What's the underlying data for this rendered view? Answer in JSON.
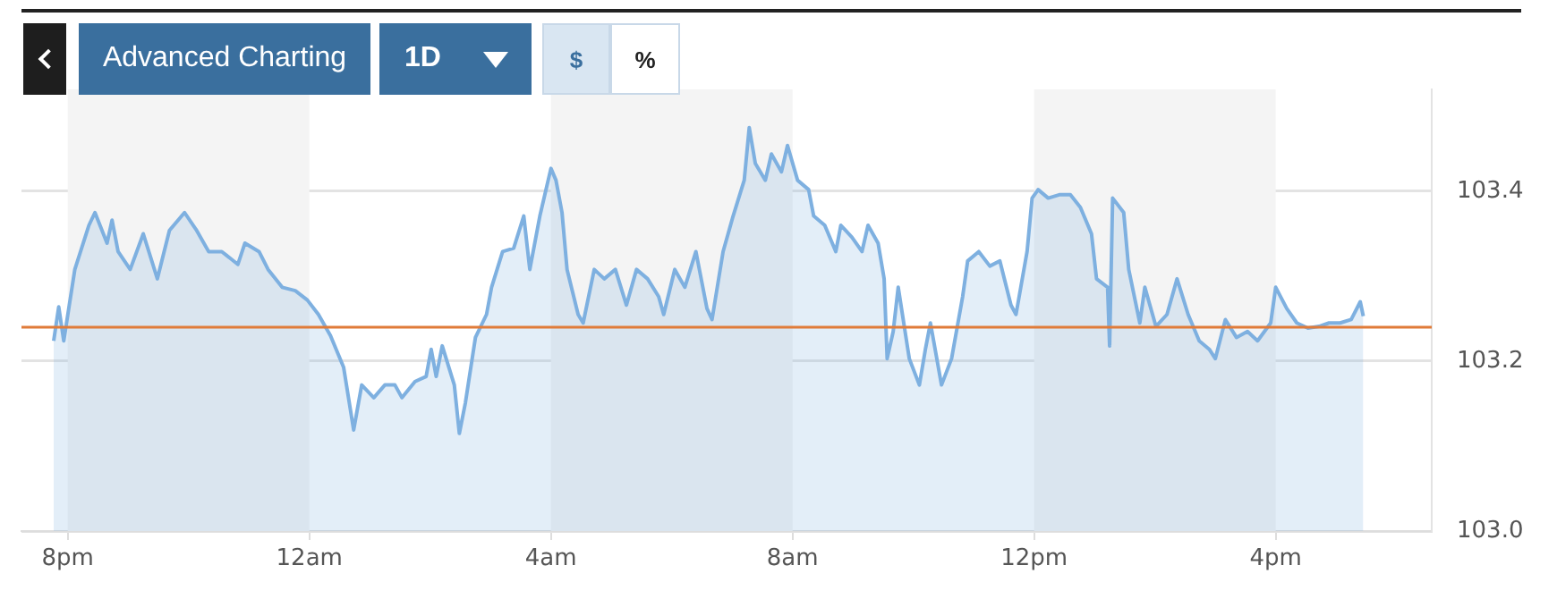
{
  "chart_data": {
    "type": "area",
    "annotations": [
      "Advanced Charting",
      "1D",
      "$",
      "%"
    ],
    "x": [
      "--01-01T19:46",
      "--01-01T19:51",
      "--01-01T19:56",
      "--01-01T20:07",
      "--01-01T20:21",
      "--01-01T20:27",
      "--01-01T20:39",
      "--01-01T20:44",
      "--01-01T20:50",
      "--01-01T21:02",
      "--01-01T21:15",
      "--01-01T21:29",
      "--01-01T21:41",
      "--01-01T21:56",
      "--01-01T22:08",
      "--01-01T22:20",
      "--01-01T22:33",
      "--01-01T22:49",
      "--01-01T22:56",
      "--01-01T23:10",
      "--01-01T23:19",
      "--01-01T23:33",
      "--01-01T23:46",
      "--01-01T23:58",
      "--01-02T00:09",
      "--01-02T00:21",
      "--01-02T00:34",
      "--01-02T00:44",
      "--01-02T00:52",
      "--01-02T01:04",
      "--01-02T01:15",
      "--01-02T01:25",
      "--01-02T01:32",
      "--01-02T01:45",
      "--01-02T01:56",
      "--01-02T02:01",
      "--01-02T02:06",
      "--01-02T02:12",
      "--01-02T02:24",
      "--01-02T02:29",
      "--01-02T02:35",
      "--01-02T02:45",
      "--01-02T02:56",
      "--01-02T03:01",
      "--01-02T03:12",
      "--01-02T03:23",
      "--01-02T03:33",
      "--01-02T03:39",
      "--01-02T03:49",
      "--01-02T04:00",
      "--01-02T04:05",
      "--01-02T04:11",
      "--01-02T04:16",
      "--01-02T04:27",
      "--01-02T04:32",
      "--01-02T04:43",
      "--01-02T04:53",
      "--01-02T05:04",
      "--01-02T05:15",
      "--01-02T05:25",
      "--01-02T05:36",
      "--01-02T05:47",
      "--01-02T05:52",
      "--01-02T06:03",
      "--01-02T06:13",
      "--01-02T06:24",
      "--01-02T06:35",
      "--01-02T06:40",
      "--01-02T06:51",
      "--01-02T07:01",
      "--01-02T07:12",
      "--01-02T07:17",
      "--01-02T07:23",
      "--01-02T07:33",
      "--01-02T07:39",
      "--01-02T07:49",
      "--01-02T07:55",
      "--01-02T08:05",
      "--01-02T08:16",
      "--01-02T08:21",
      "--01-02T08:32",
      "--01-02T08:43",
      "--01-02T08:48",
      "--01-02T08:59",
      "--01-02T09:09",
      "--01-02T09:15",
      "--01-02T09:25",
      "--01-02T09:31",
      "--01-02T09:34",
      "--01-02T09:40",
      "--01-02T09:45",
      "--01-02T09:56",
      "--01-02T10:06",
      "--01-02T10:12",
      "--01-02T10:17",
      "--01-02T10:28",
      "--01-02T10:38",
      "--01-02T10:49",
      "--01-02T10:54",
      "--01-02T11:05",
      "--01-02T11:16",
      "--01-02T11:26",
      "--01-02T11:37",
      "--01-02T11:42",
      "--01-02T11:53",
      "--01-02T11:58",
      "--01-02T12:04",
      "--01-02T12:14",
      "--01-02T12:25",
      "--01-02T12:36",
      "--01-02T12:46",
      "--01-02T12:57",
      "--01-02T13:02",
      "--01-02T13:13",
      "--01-02T13:15",
      "--01-02T13:18",
      "--01-02T13:29",
      "--01-02T13:34",
      "--01-02T13:45",
      "--01-02T13:50",
      "--01-02T14:01",
      "--01-02T14:12",
      "--01-02T14:22",
      "--01-02T14:33",
      "--01-02T14:44",
      "--01-02T14:54",
      "--01-02T15:00",
      "--01-02T15:10",
      "--01-02T15:21",
      "--01-02T15:32",
      "--01-02T15:42",
      "--01-02T15:55",
      "--01-02T16:00",
      "--01-02T16:11",
      "--01-02T16:21",
      "--01-02T16:32",
      "--01-02T16:43",
      "--01-02T16:53",
      "--01-02T17:04",
      "--01-02T17:15",
      "--01-02T17:24",
      "--01-02T17:27"
    ],
    "series": [
      {
        "color": "#7eb0e0",
        "values": [
          103.224,
          103.264,
          103.224,
          103.308,
          103.36,
          103.375,
          103.339,
          103.366,
          103.329,
          103.308,
          103.35,
          103.297,
          103.354,
          103.375,
          103.354,
          103.329,
          103.329,
          103.314,
          103.339,
          103.329,
          103.308,
          103.287,
          103.283,
          103.272,
          103.255,
          103.23,
          103.193,
          103.119,
          103.172,
          103.157,
          103.172,
          103.172,
          103.157,
          103.176,
          103.182,
          103.214,
          103.182,
          103.218,
          103.172,
          103.115,
          103.151,
          103.228,
          103.255,
          103.287,
          103.329,
          103.333,
          103.371,
          103.308,
          103.371,
          103.427,
          103.413,
          103.375,
          103.308,
          103.255,
          103.245,
          103.308,
          103.297,
          103.308,
          103.266,
          103.308,
          103.297,
          103.276,
          103.255,
          103.308,
          103.287,
          103.329,
          103.262,
          103.249,
          103.329,
          103.371,
          103.413,
          103.475,
          103.433,
          103.413,
          103.444,
          103.423,
          103.454,
          103.413,
          103.402,
          103.371,
          103.36,
          103.329,
          103.36,
          103.346,
          103.329,
          103.36,
          103.339,
          103.297,
          103.203,
          103.235,
          103.287,
          103.203,
          103.172,
          103.214,
          103.245,
          103.172,
          103.203,
          103.276,
          103.318,
          103.329,
          103.312,
          103.318,
          103.266,
          103.255,
          103.329,
          103.392,
          103.402,
          103.392,
          103.396,
          103.396,
          103.381,
          103.35,
          103.297,
          103.287,
          103.218,
          103.392,
          103.375,
          103.308,
          103.245,
          103.287,
          103.241,
          103.255,
          103.297,
          103.255,
          103.224,
          103.214,
          103.203,
          103.249,
          103.228,
          103.235,
          103.224,
          103.245,
          103.287,
          103.262,
          103.245,
          103.239,
          103.241,
          103.245,
          103.245,
          103.249,
          103.27,
          103.253
        ]
      }
    ],
    "xlim": [
      "--01-01T19:14",
      "--01-02T18:35"
    ],
    "xticks": [
      {
        "value": "--01-01T20:00",
        "label": "8pm"
      },
      {
        "value": "--01-02T00:00",
        "label": "12am"
      },
      {
        "value": "--01-02T04:00",
        "label": "4am"
      },
      {
        "value": "--01-02T08:00",
        "label": "8am"
      },
      {
        "value": "--01-02T12:00",
        "label": "12pm"
      },
      {
        "value": "--01-02T16:00",
        "label": "4pm"
      }
    ],
    "ylim": [
      103.0,
      103.52
    ],
    "yticks": [
      {
        "value": 103.0,
        "label": "103.0"
      },
      103.2,
      103.4
    ],
    "ref_lines": [
      {
        "axis": "y",
        "value": 103.24,
        "color": "#e07b39"
      }
    ],
    "bands": [
      {
        "axis": "x",
        "from": "--01-01T20:00",
        "to": "--01-02T00:00",
        "color": "#f4f4f4"
      },
      {
        "axis": "x",
        "from": "--01-02T04:00",
        "to": "--01-02T08:00",
        "color": "#f4f4f4"
      },
      {
        "axis": "x",
        "from": "--01-02T12:00",
        "to": "--01-02T16:00",
        "color": "#f4f4f4"
      }
    ],
    "grid": "y",
    "legend": false,
    "marker": "none",
    "line_style": "solid"
  }
}
